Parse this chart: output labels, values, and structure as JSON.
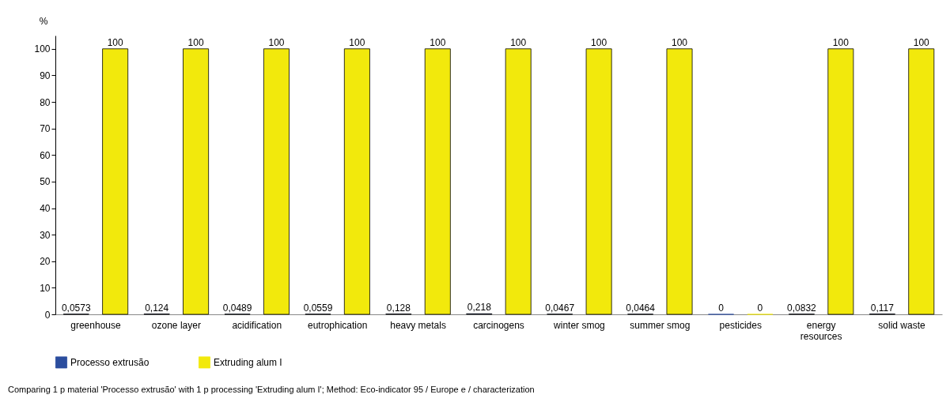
{
  "chart_data": {
    "type": "bar",
    "ylabel": "%",
    "categories": [
      "greenhouse",
      "ozone layer",
      "acidification",
      "eutrophication",
      "heavy metals",
      "carcinogens",
      "winter smog",
      "summer smog",
      "pesticides",
      "energy resources",
      "solid waste"
    ],
    "series": [
      {
        "name": "Processo extrusão",
        "color": "#2b4d9e",
        "values": [
          0.0573,
          0.124,
          0.0489,
          0.0559,
          0.128,
          0.218,
          0.0467,
          0.0464,
          0,
          0.0832,
          0.117
        ],
        "value_labels": [
          "0,0573",
          "0,124",
          "0,0489",
          "0,0559",
          "0,128",
          "0,218",
          "0,0467",
          "0,0464",
          "0",
          "0,0832",
          "0,117"
        ]
      },
      {
        "name": "Extruding alum I",
        "color": "#f2e90c",
        "values": [
          100,
          100,
          100,
          100,
          100,
          100,
          100,
          100,
          0,
          100,
          100
        ],
        "value_labels": [
          "100",
          "100",
          "100",
          "100",
          "100",
          "100",
          "100",
          "100",
          "0",
          "100",
          "100"
        ]
      }
    ],
    "ylim": [
      0,
      105
    ],
    "yticks": [
      0,
      10,
      20,
      30,
      40,
      50,
      60,
      70,
      80,
      90,
      100
    ],
    "grid": false,
    "legend": "bottom left",
    "annotations": [
      "Comparing 1 p material 'Processo extrusão' with 1 p processing 'Extruding alum I';  Method: Eco-indicator 95 /  Europe e / characterization"
    ]
  }
}
